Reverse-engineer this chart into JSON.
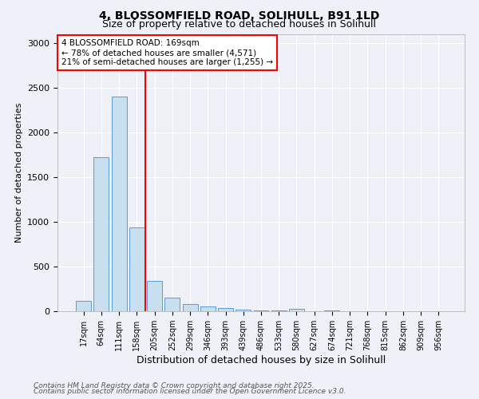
{
  "title1": "4, BLOSSOMFIELD ROAD, SOLIHULL, B91 1LD",
  "title2": "Size of property relative to detached houses in Solihull",
  "xlabel": "Distribution of detached houses by size in Solihull",
  "ylabel": "Number of detached properties",
  "categories": [
    "17sqm",
    "64sqm",
    "111sqm",
    "158sqm",
    "205sqm",
    "252sqm",
    "299sqm",
    "346sqm",
    "393sqm",
    "439sqm",
    "486sqm",
    "533sqm",
    "580sqm",
    "627sqm",
    "674sqm",
    "721sqm",
    "768sqm",
    "815sqm",
    "862sqm",
    "909sqm",
    "956sqm"
  ],
  "values": [
    120,
    1720,
    2400,
    940,
    340,
    155,
    80,
    55,
    35,
    15,
    10,
    8,
    25,
    0,
    5,
    0,
    0,
    0,
    0,
    0,
    0
  ],
  "bar_color": "#c8dff0",
  "bar_edge_color": "#5b9bd5",
  "vline_x": 3.5,
  "vline_color": "red",
  "annotation_text": "4 BLOSSOMFIELD ROAD: 169sqm\n← 78% of detached houses are smaller (4,571)\n21% of semi-detached houses are larger (1,255) →",
  "annotation_box_color": "white",
  "annotation_box_edge": "red",
  "ylim": [
    0,
    3100
  ],
  "yticks": [
    0,
    500,
    1000,
    1500,
    2000,
    2500,
    3000
  ],
  "footer1": "Contains HM Land Registry data © Crown copyright and database right 2025.",
  "footer2": "Contains public sector information licensed under the Open Government Licence v3.0.",
  "bg_color": "#eef2f8",
  "plot_bg_color": "#eef2f8"
}
